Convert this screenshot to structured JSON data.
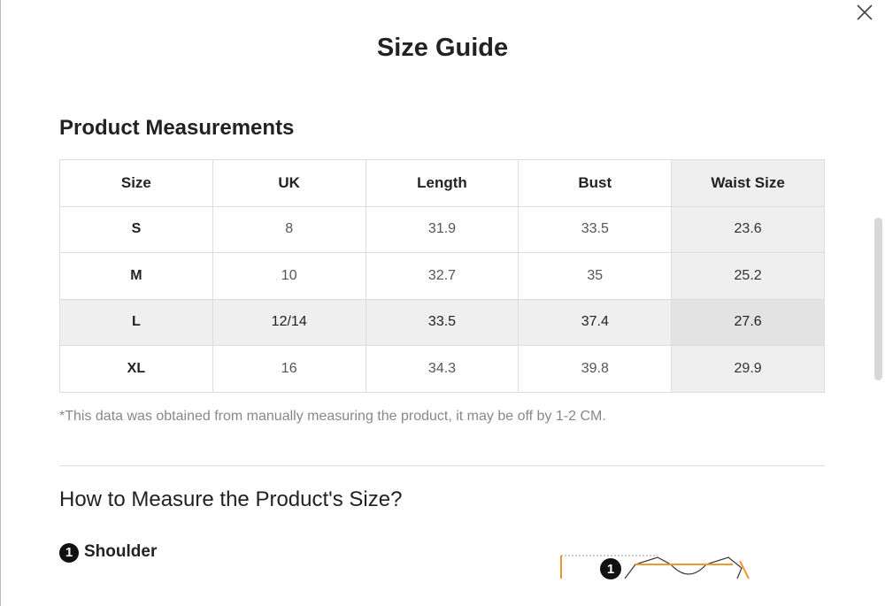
{
  "modal": {
    "title": "Size Guide"
  },
  "measurements": {
    "heading": "Product Measurements",
    "table": {
      "header": [
        "Size",
        "UK",
        "Length",
        "Bust",
        "Waist Size"
      ],
      "rows": [
        [
          "S",
          "8",
          "31.9",
          "33.5",
          "23.6"
        ],
        [
          "M",
          "10",
          "32.7",
          "35",
          "25.2"
        ],
        [
          "L",
          "12/14",
          "33.5",
          "37.4",
          "27.6"
        ],
        [
          "XL",
          "16",
          "34.3",
          "39.8",
          "29.9"
        ]
      ]
    },
    "note": "*This data was obtained from manually measuring the product, it may be off by 1-2 CM."
  },
  "how_to": {
    "heading": "How to Measure the Product's Size?",
    "steps": [
      {
        "number": "1",
        "label": "Shoulder"
      }
    ],
    "diagram_badge": "1"
  }
}
